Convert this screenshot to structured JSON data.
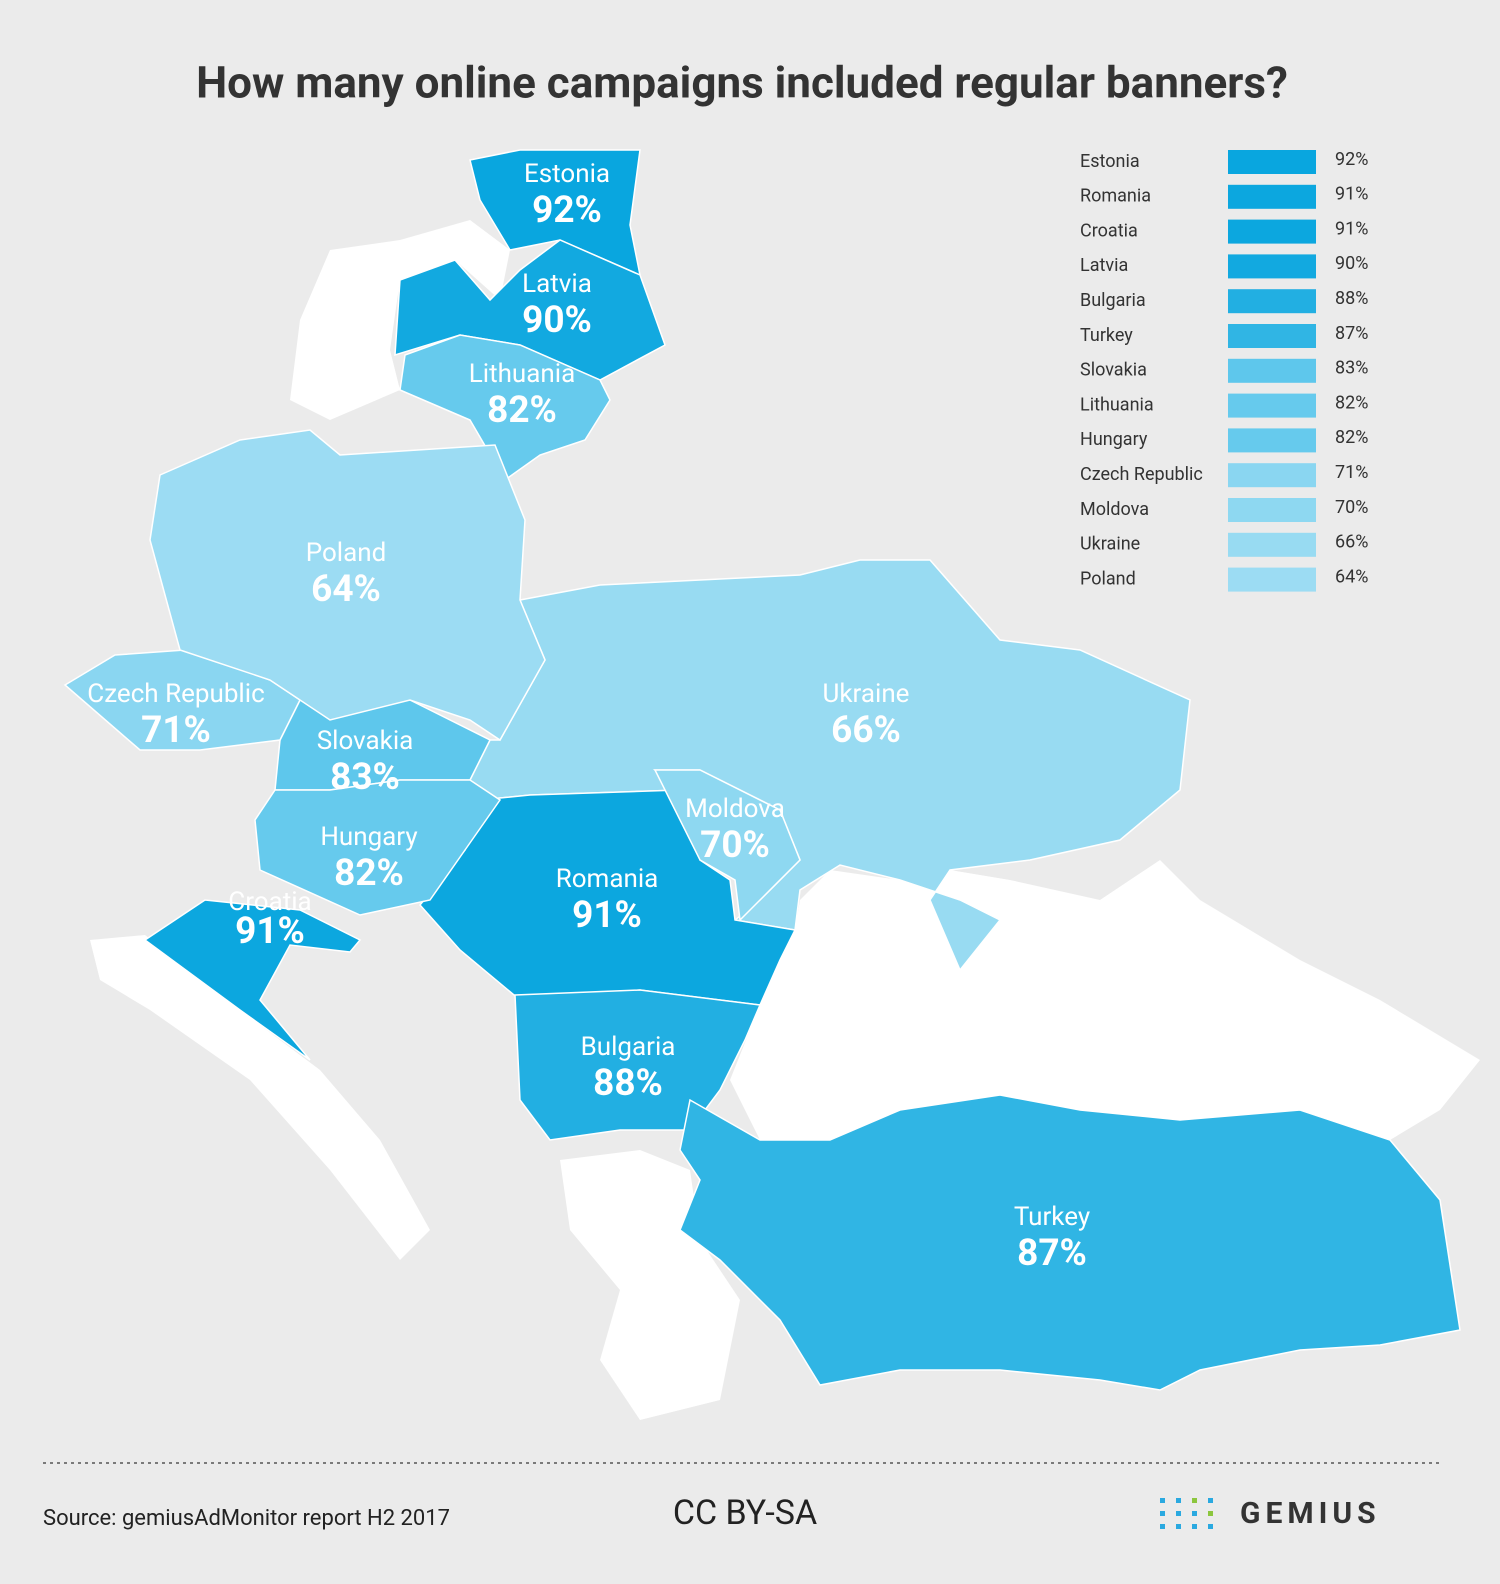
{
  "chart_data": {
    "type": "map",
    "title": "How many online campaigns included regular banners?",
    "categories": [
      "Estonia",
      "Romania",
      "Croatia",
      "Latvia",
      "Bulgaria",
      "Turkey",
      "Slovakia",
      "Lithuania",
      "Hungary",
      "Czech Republic",
      "Moldova",
      "Ukraine",
      "Poland"
    ],
    "values": [
      92,
      91,
      91,
      90,
      88,
      87,
      83,
      82,
      82,
      71,
      70,
      66,
      64
    ],
    "value_labels": [
      "92%",
      "91%",
      "91%",
      "90%",
      "88%",
      "87%",
      "83%",
      "82%",
      "82%",
      "71%",
      "70%",
      "66%",
      "64%"
    ],
    "colors": [
      "#09a6df",
      "#0ca7df",
      "#0ca7df",
      "#12a9e0",
      "#22afe2",
      "#30b5e4",
      "#5ec7ec",
      "#66caed",
      "#66caed",
      "#8ad6f1",
      "#8ed8f1",
      "#98dbf2",
      "#9cdcf3"
    ]
  },
  "source": "Source: gemiusAdMonitor report H2 2017",
  "license": "CC BY-SA",
  "logo": "GEMIUS"
}
